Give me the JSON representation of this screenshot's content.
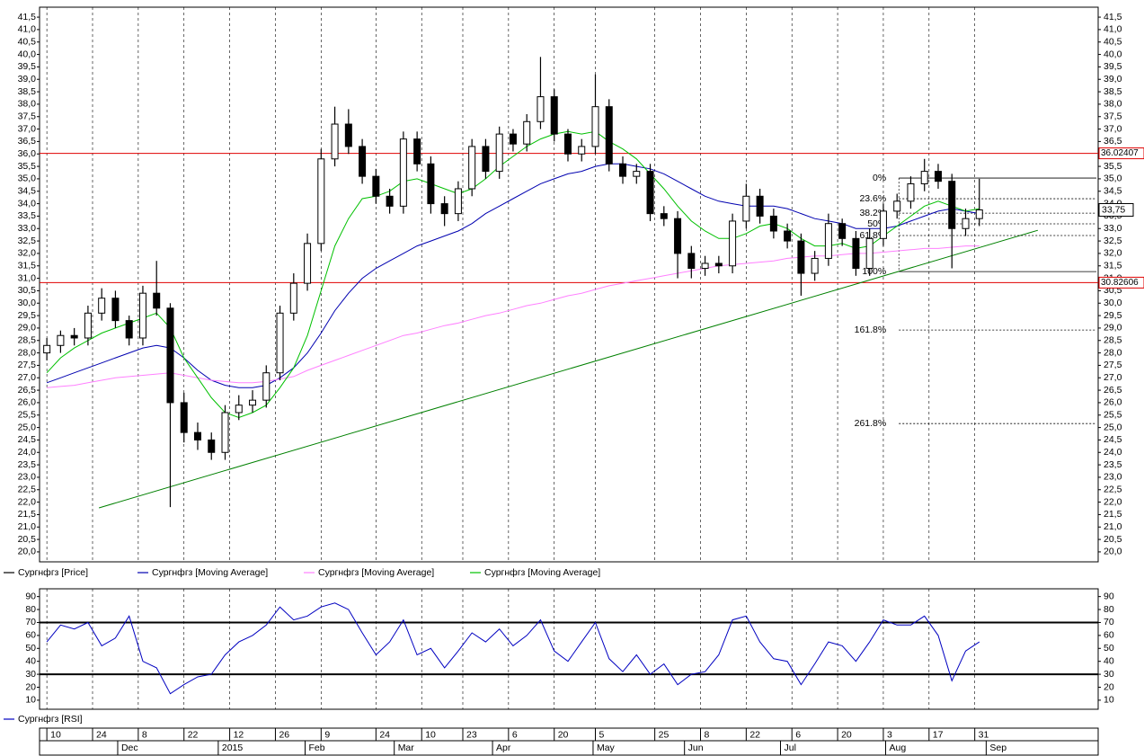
{
  "chart_data": [
    {
      "type": "candlestick",
      "x": [
        0,
        3,
        6,
        9,
        12,
        15,
        18,
        21,
        24,
        27,
        30,
        33,
        36,
        39,
        42,
        45,
        48,
        51,
        54,
        57,
        60,
        63,
        66,
        69,
        72,
        75,
        78,
        81,
        84,
        87,
        90,
        93,
        96,
        99,
        102,
        105,
        108,
        111,
        114,
        117,
        120,
        123,
        126,
        129,
        132,
        135,
        138,
        141,
        144,
        147,
        150,
        153,
        156,
        159,
        162,
        165,
        168,
        171,
        174,
        177,
        180,
        183,
        186,
        189,
        192,
        195,
        198,
        201,
        204
      ],
      "series": [
        {
          "name": "Сургнфгз [Price]",
          "color": "#000000",
          "open": [
            28.0,
            28.3,
            28.7,
            28.6,
            29.6,
            30.2,
            29.3,
            28.6,
            30.4,
            29.8,
            26.0,
            24.8,
            24.5,
            24.0,
            25.6,
            25.9,
            26.1,
            27.2,
            29.6,
            30.8,
            32.4,
            35.8,
            37.2,
            36.3,
            35.1,
            34.3,
            33.9,
            36.6,
            35.6,
            34.0,
            33.6,
            34.6,
            36.3,
            35.3,
            36.8,
            36.4,
            37.3,
            38.3,
            36.8,
            36.0,
            36.3,
            37.9,
            35.6,
            35.1,
            35.3,
            33.6,
            33.4,
            32.0,
            31.4,
            31.6,
            31.5,
            33.3,
            34.3,
            33.5,
            32.9,
            32.5,
            31.2,
            31.8,
            33.2,
            32.6,
            31.4,
            32.6,
            33.7,
            34.1,
            34.8,
            35.3,
            34.9,
            33.0,
            33.4
          ],
          "high": [
            28.6,
            28.9,
            29.0,
            29.9,
            30.6,
            30.5,
            29.5,
            30.7,
            31.7,
            30.0,
            26.4,
            25.2,
            24.8,
            25.9,
            26.3,
            26.5,
            27.5,
            29.9,
            31.2,
            32.8,
            36.2,
            37.9,
            37.8,
            36.6,
            35.4,
            34.6,
            36.9,
            36.9,
            35.9,
            34.3,
            34.9,
            36.6,
            36.6,
            37.1,
            37.0,
            37.6,
            39.9,
            38.6,
            37.0,
            36.6,
            39.2,
            38.2,
            35.9,
            35.6,
            35.6,
            33.9,
            33.7,
            32.3,
            31.9,
            31.9,
            33.6,
            34.8,
            34.6,
            33.8,
            33.2,
            32.8,
            32.1,
            33.6,
            33.4,
            32.9,
            33.0,
            34.0,
            34.4,
            35.1,
            35.8,
            35.6,
            35.2,
            33.8,
            35.0
          ],
          "low": [
            27.7,
            28.0,
            28.3,
            28.3,
            29.3,
            29.0,
            28.3,
            28.3,
            29.5,
            21.8,
            24.4,
            24.1,
            23.7,
            23.7,
            25.3,
            25.6,
            25.8,
            26.9,
            29.3,
            30.5,
            32.1,
            35.5,
            36.0,
            34.8,
            34.0,
            33.6,
            33.6,
            35.3,
            33.6,
            33.1,
            33.3,
            34.3,
            35.0,
            35.0,
            36.1,
            36.1,
            37.0,
            36.5,
            35.7,
            35.7,
            36.0,
            35.3,
            34.8,
            34.8,
            33.3,
            33.1,
            31.0,
            31.0,
            31.1,
            31.2,
            31.2,
            33.0,
            33.2,
            32.6,
            32.2,
            30.3,
            30.9,
            31.5,
            32.3,
            31.1,
            31.1,
            32.3,
            33.4,
            33.8,
            34.5,
            34.6,
            31.4,
            32.7,
            33.1
          ],
          "close": [
            28.3,
            28.7,
            28.6,
            29.6,
            30.2,
            29.3,
            28.6,
            30.4,
            29.8,
            26.0,
            24.8,
            24.5,
            24.0,
            25.6,
            25.9,
            26.1,
            27.2,
            29.6,
            30.8,
            32.4,
            35.8,
            37.2,
            36.3,
            35.1,
            34.3,
            33.9,
            36.6,
            35.6,
            34.0,
            33.6,
            34.6,
            36.3,
            35.3,
            36.8,
            36.4,
            37.3,
            38.3,
            36.8,
            36.0,
            36.3,
            37.9,
            35.6,
            35.1,
            35.3,
            33.6,
            33.4,
            32.0,
            31.4,
            31.6,
            31.5,
            33.3,
            34.3,
            33.5,
            32.9,
            32.5,
            31.2,
            31.8,
            33.2,
            32.6,
            31.4,
            32.6,
            33.7,
            34.1,
            34.8,
            35.3,
            34.9,
            33.0,
            33.4,
            33.75
          ]
        },
        {
          "name": "Сургнфгз [Moving Average]",
          "color": "#0000b0",
          "type": "line",
          "values": [
            26.8,
            27.0,
            27.2,
            27.4,
            27.6,
            27.8,
            28.0,
            28.2,
            28.3,
            28.2,
            27.8,
            27.3,
            26.9,
            26.7,
            26.6,
            26.6,
            26.7,
            27.0,
            27.4,
            28.0,
            28.8,
            29.7,
            30.4,
            31.0,
            31.4,
            31.7,
            32.0,
            32.3,
            32.5,
            32.7,
            32.9,
            33.2,
            33.6,
            33.9,
            34.2,
            34.5,
            34.8,
            35.0,
            35.2,
            35.3,
            35.5,
            35.6,
            35.6,
            35.5,
            35.4,
            35.2,
            34.9,
            34.6,
            34.3,
            34.1,
            34.0,
            33.9,
            33.9,
            33.9,
            33.8,
            33.6,
            33.4,
            33.3,
            33.2,
            33.0,
            33.0,
            33.0,
            33.1,
            33.3,
            33.5,
            33.7,
            33.8,
            33.7,
            33.6
          ]
        },
        {
          "name": "Сургнфгз [Moving Average]",
          "color": "#ff80ff",
          "type": "line",
          "values": [
            26.6,
            26.65,
            26.7,
            26.8,
            26.9,
            27.0,
            27.05,
            27.1,
            27.15,
            27.2,
            27.1,
            27.0,
            26.9,
            26.85,
            26.8,
            26.8,
            26.85,
            26.95,
            27.05,
            27.3,
            27.5,
            27.7,
            27.9,
            28.1,
            28.3,
            28.5,
            28.7,
            28.8,
            28.95,
            29.1,
            29.2,
            29.35,
            29.5,
            29.6,
            29.75,
            29.9,
            30.0,
            30.15,
            30.3,
            30.4,
            30.55,
            30.7,
            30.8,
            30.9,
            31.0,
            31.1,
            31.2,
            31.3,
            31.4,
            31.5,
            31.55,
            31.6,
            31.65,
            31.7,
            31.8,
            31.85,
            31.9,
            31.9,
            31.95,
            32.0,
            32.0,
            32.05,
            32.1,
            32.15,
            32.2,
            32.2,
            32.25,
            32.3,
            32.3
          ]
        },
        {
          "name": "Сургнфгз [Moving Average]",
          "color": "#00c000",
          "type": "line",
          "values": [
            27.2,
            27.8,
            28.2,
            28.5,
            28.8,
            29.0,
            29.2,
            29.4,
            29.6,
            29.0,
            27.8,
            27.0,
            26.2,
            25.6,
            25.4,
            25.6,
            25.9,
            26.6,
            27.4,
            28.7,
            30.5,
            32.3,
            33.4,
            34.2,
            34.3,
            34.5,
            34.9,
            35.0,
            34.8,
            34.6,
            34.4,
            34.6,
            35.0,
            35.5,
            35.9,
            36.3,
            36.6,
            36.8,
            36.9,
            36.8,
            36.9,
            36.5,
            36.2,
            35.8,
            35.2,
            34.6,
            33.9,
            33.3,
            32.9,
            32.6,
            32.6,
            32.8,
            33.1,
            33.2,
            33.0,
            32.6,
            32.3,
            32.3,
            32.4,
            32.2,
            32.3,
            32.7,
            33.1,
            33.5,
            33.9,
            34.1,
            33.9,
            33.7,
            33.8
          ]
        }
      ],
      "xlim": [
        -1.6,
        230
      ],
      "xticks": [
        {
          "value": 0,
          "label": "10"
        },
        {
          "value": 10,
          "label": "24"
        },
        {
          "value": 20,
          "label": "8"
        },
        {
          "value": 30,
          "label": "22"
        },
        {
          "value": 40,
          "label": "12"
        },
        {
          "value": 50,
          "label": "26"
        },
        {
          "value": 60,
          "label": "9"
        },
        {
          "value": 72,
          "label": "24"
        },
        {
          "value": 82,
          "label": "10"
        },
        {
          "value": 91,
          "label": "23"
        },
        {
          "value": 101,
          "label": "6"
        },
        {
          "value": 111,
          "label": "20"
        },
        {
          "value": 120,
          "label": "5"
        },
        {
          "value": 133,
          "label": "25"
        },
        {
          "value": 143,
          "label": "8"
        },
        {
          "value": 153,
          "label": "22"
        },
        {
          "value": 163,
          "label": "6"
        },
        {
          "value": 173,
          "label": "20"
        },
        {
          "value": 183,
          "label": "3"
        },
        {
          "value": 193,
          "label": "17"
        },
        {
          "value": 203,
          "label": "31"
        }
      ],
      "month_ticks": [
        {
          "value": 15.5,
          "label": "Dec"
        },
        {
          "value": 37.5,
          "label": "2015"
        },
        {
          "value": 56.5,
          "label": "Feb"
        },
        {
          "value": 76,
          "label": "Mar"
        },
        {
          "value": 97.5,
          "label": "Apr"
        },
        {
          "value": 119.5,
          "label": "May"
        },
        {
          "value": 139.5,
          "label": "Jun"
        },
        {
          "value": 160.5,
          "label": "Jul"
        },
        {
          "value": 183.5,
          "label": "Aug"
        },
        {
          "value": 205.5,
          "label": "Sep"
        }
      ],
      "ylim": [
        19.6,
        41.9
      ],
      "yticks": [
        {
          "value": 20,
          "label": "20,0"
        },
        {
          "value": 20.5,
          "label": "20,5"
        },
        {
          "value": 21,
          "label": "21,0"
        },
        {
          "value": 21.5,
          "label": "21,5"
        },
        {
          "value": 22,
          "label": "22,0"
        },
        {
          "value": 22.5,
          "label": "22,5"
        },
        {
          "value": 23,
          "label": "23,0"
        },
        {
          "value": 23.5,
          "label": "23,5"
        },
        {
          "value": 24,
          "label": "24,0"
        },
        {
          "value": 24.5,
          "label": "24,5"
        },
        {
          "value": 25,
          "label": "25,0"
        },
        {
          "value": 25.5,
          "label": "25,5"
        },
        {
          "value": 26,
          "label": "26,0"
        },
        {
          "value": 26.5,
          "label": "26,5"
        },
        {
          "value": 27,
          "label": "27,0"
        },
        {
          "value": 27.5,
          "label": "27,5"
        },
        {
          "value": 28,
          "label": "28,0"
        },
        {
          "value": 28.5,
          "label": "28,5"
        },
        {
          "value": 29,
          "label": "29,0"
        },
        {
          "value": 29.5,
          "label": "29,5"
        },
        {
          "value": 30,
          "label": "30,0"
        },
        {
          "value": 30.5,
          "label": "30,5"
        },
        {
          "value": 31,
          "label": "31,0"
        },
        {
          "value": 31.5,
          "label": "31,5"
        },
        {
          "value": 32,
          "label": "32,0"
        },
        {
          "value": 32.5,
          "label": "32,5"
        },
        {
          "value": 33,
          "label": "33,0"
        },
        {
          "value": 33.5,
          "label": "33,5"
        },
        {
          "value": 34,
          "label": "34,0"
        },
        {
          "value": 34.5,
          "label": "34,5"
        },
        {
          "value": 35,
          "label": "35,0"
        },
        {
          "value": 35.5,
          "label": "35,5"
        },
        {
          "value": 36,
          "label": "36,0"
        },
        {
          "value": 36.5,
          "label": "36,5"
        },
        {
          "value": 37,
          "label": "37,0"
        },
        {
          "value": 37.5,
          "label": "37,5"
        },
        {
          "value": 38,
          "label": "38,0"
        },
        {
          "value": 38.5,
          "label": "38,5"
        },
        {
          "value": 39,
          "label": "39,0"
        },
        {
          "value": 39.5,
          "label": "39,5"
        },
        {
          "value": 40,
          "label": "40,0"
        },
        {
          "value": 40.5,
          "label": "40,5"
        },
        {
          "value": 41,
          "label": "41,0"
        },
        {
          "value": 41.5,
          "label": "41,5"
        }
      ],
      "hlines": [
        {
          "value": 36.02407,
          "label": "36.02407",
          "color": "#e00000"
        },
        {
          "value": 30.82606,
          "label": "30.82606",
          "color": "#e00000"
        }
      ],
      "last_price": {
        "value": 33.75,
        "label": "33,75"
      },
      "trendline": {
        "x": [
          11.4,
          216.8
        ],
        "y": [
          21.77,
          32.93
        ],
        "color": "#008000"
      },
      "fibonacci": {
        "start_x": 186.4,
        "levels": [
          {
            "value": 35.03,
            "label": "0%",
            "line": "solid"
          },
          {
            "value": 34.2,
            "label": "23.6%",
            "line": "dashed"
          },
          {
            "value": 33.62,
            "label": "38.2%",
            "line": "dashed"
          },
          {
            "value": 33.19,
            "label": "50%",
            "line": "dashed"
          },
          {
            "value": 32.72,
            "label": "61.8%",
            "line": "dashed"
          },
          {
            "value": 31.27,
            "label": "100%",
            "line": "solid"
          },
          {
            "value": 28.92,
            "label": "161.8%",
            "line": "dashed"
          },
          {
            "value": 25.16,
            "label": "261.8%",
            "line": "dashed"
          }
        ]
      }
    },
    {
      "type": "line",
      "x": [
        0,
        3,
        6,
        9,
        12,
        15,
        18,
        21,
        24,
        27,
        30,
        33,
        36,
        39,
        42,
        45,
        48,
        51,
        54,
        57,
        60,
        63,
        66,
        69,
        72,
        75,
        78,
        81,
        84,
        87,
        90,
        93,
        96,
        99,
        102,
        105,
        108,
        111,
        114,
        117,
        120,
        123,
        126,
        129,
        132,
        135,
        138,
        141,
        144,
        147,
        150,
        153,
        156,
        159,
        162,
        165,
        168,
        171,
        174,
        177,
        180,
        183,
        186,
        189,
        192,
        195,
        198,
        201,
        204
      ],
      "series": [
        {
          "name": "Сургнфгз [RSI]",
          "color": "#0000c0",
          "values": [
            55,
            68,
            65,
            70,
            52,
            58,
            75,
            40,
            35,
            15,
            22,
            28,
            30,
            45,
            55,
            60,
            68,
            82,
            72,
            75,
            82,
            85,
            80,
            62,
            45,
            55,
            72,
            45,
            50,
            35,
            48,
            62,
            55,
            65,
            52,
            60,
            72,
            48,
            40,
            55,
            70,
            42,
            32,
            45,
            30,
            38,
            22,
            30,
            32,
            45,
            72,
            75,
            55,
            42,
            40,
            22,
            38,
            55,
            52,
            40,
            55,
            72,
            68,
            68,
            75,
            60,
            25,
            48,
            55
          ]
        }
      ],
      "xlim": [
        -1.6,
        230
      ],
      "ylim": [
        3,
        96
      ],
      "yticks": [
        10,
        20,
        30,
        40,
        50,
        60,
        70,
        80,
        90
      ],
      "levels": [
        70,
        30
      ]
    }
  ]
}
